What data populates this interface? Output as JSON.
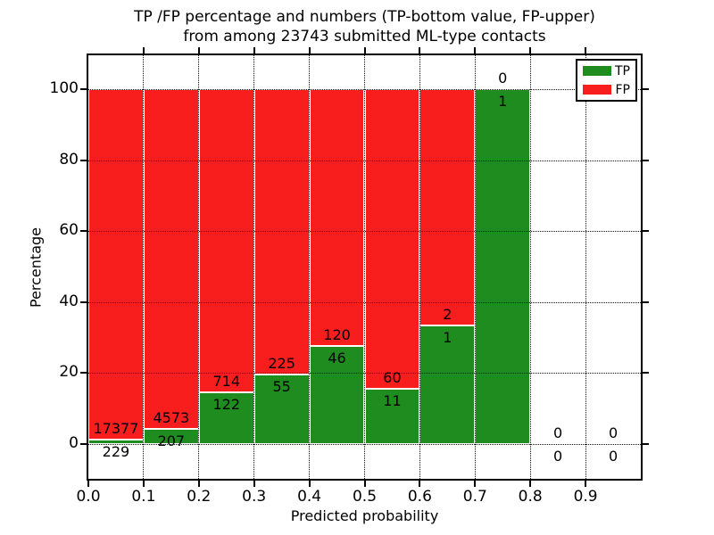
{
  "figure": {
    "title_line1": "TP /FP percentage and numbers (TP-bottom value, FP-upper)",
    "title_line2": "from among 23743 submitted ML-type contacts",
    "xlabel": "Predicted probability",
    "ylabel": "Percentage"
  },
  "legend": {
    "items": [
      {
        "label": "TP",
        "color": "#1e8c1e"
      },
      {
        "label": "FP",
        "color": "#f81e1e"
      }
    ]
  },
  "chart_data": {
    "type": "bar",
    "stacked": true,
    "normalized_to_percent": true,
    "title": "TP /FP percentage and numbers (TP-bottom value, FP-upper) from among 23743 submitted ML-type contacts",
    "xlabel": "Predicted probability",
    "ylabel": "Percentage",
    "total_submitted": 23743,
    "bin_width": 0.1,
    "bin_starts": [
      0.0,
      0.1,
      0.2,
      0.3,
      0.4,
      0.5,
      0.6,
      0.7,
      0.8,
      0.9
    ],
    "series": [
      {
        "name": "TP",
        "color": "#1e8c1e",
        "counts": [
          229,
          207,
          122,
          55,
          46,
          11,
          1,
          1,
          0,
          0
        ]
      },
      {
        "name": "FP",
        "color": "#f81e1e",
        "counts": [
          17377,
          4573,
          714,
          225,
          120,
          60,
          2,
          0,
          0,
          0
        ]
      }
    ],
    "tp_percent_of_bin": [
      1.3,
      4.33,
      14.59,
      19.64,
      27.71,
      15.49,
      33.33,
      100.0,
      0.0,
      0.0
    ],
    "xticks": [
      "0.0",
      "0.1",
      "0.2",
      "0.3",
      "0.4",
      "0.5",
      "0.6",
      "0.7",
      "0.8",
      "0.9"
    ],
    "yticks": [
      0,
      20,
      40,
      60,
      80,
      100
    ],
    "xlim": [
      0.0,
      1.0
    ],
    "ylim": [
      -10,
      110
    ],
    "grid": true,
    "grid_style": "dotted",
    "legend_position": "upper right",
    "bar_edge_color": "#ffffff"
  }
}
